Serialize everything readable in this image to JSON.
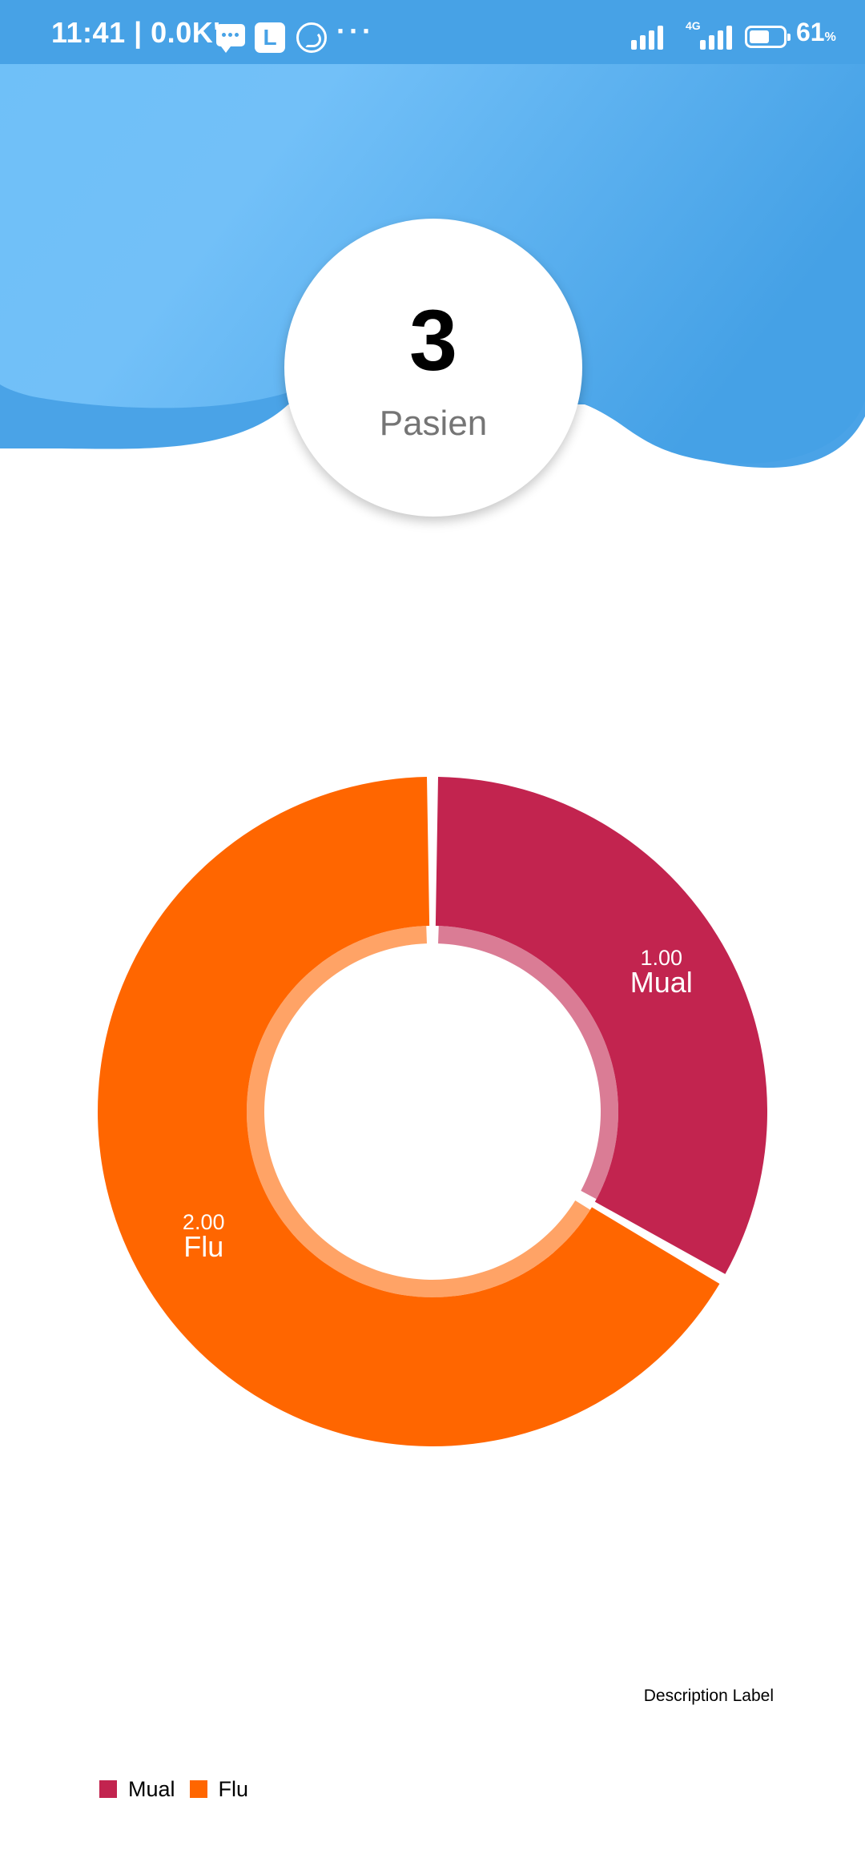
{
  "status_bar": {
    "time": "11:41 | 0.0K's",
    "network_type": "4G",
    "battery_level": "61",
    "battery_percent_sign": "%",
    "battery_fraction": 0.61,
    "background_color": "#47a2e6"
  },
  "icons": {
    "messages": "message-icon",
    "app_l": "l-app-icon",
    "app_l_letter": "L",
    "whatsapp": "whatsapp-icon",
    "more": "more-icon",
    "more_glyph": "···"
  },
  "patients": {
    "count": "3",
    "label": "Pasien"
  },
  "chart_data": {
    "type": "pie",
    "style": "donut",
    "categories": [
      "Mual",
      "Flu"
    ],
    "values": [
      1.0,
      2.0
    ],
    "value_labels": [
      "1.00",
      "2.00"
    ],
    "colors": [
      "#c2244f",
      "#ff6600"
    ],
    "legend": [
      "Mual",
      "Flu"
    ],
    "legend_placement": "bottom-left",
    "description": "Description Label"
  }
}
